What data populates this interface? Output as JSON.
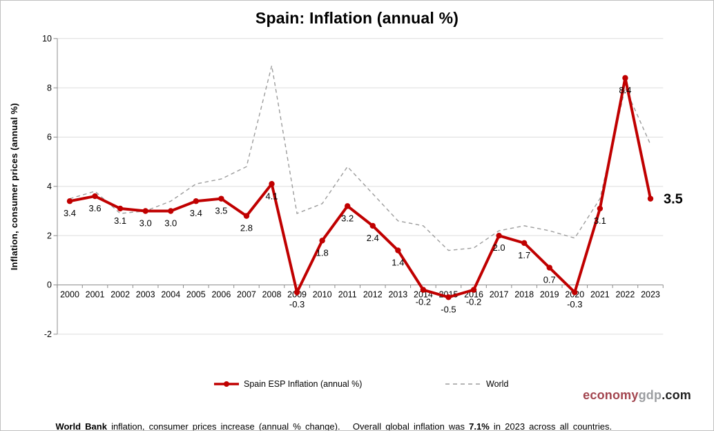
{
  "title": "Spain: Inflation (annual %)",
  "y_axis_title": "Inflation, consumer prices (annual %)",
  "legend": {
    "spain": "Spain ESP Inflation (annual %)",
    "world": "World"
  },
  "footer": {
    "bold1": "World Bank",
    "text1": " inflation, consumer prices increase (annual % change).   Overall global inflation was ",
    "bold2": "7.1%",
    "text2": " in 2023 across all countries."
  },
  "brand": {
    "part1": "economy",
    "part2": "gdp",
    "part3": ".com"
  },
  "colors": {
    "spain_line": "#c00000",
    "world_line": "#9c9c9c",
    "grid": "#dcdcdc",
    "axis": "#8c8c8c",
    "label": "#000000",
    "brand_red": "#a2444e",
    "brand_grey": "#9c9ea1",
    "brand_black": "#1f1f1f"
  },
  "chart_data": {
    "type": "line",
    "categories": [
      "2000",
      "2001",
      "2002",
      "2003",
      "2004",
      "2005",
      "2006",
      "2007",
      "2008",
      "2009",
      "2010",
      "2011",
      "2012",
      "2013",
      "2014",
      "2015",
      "2016",
      "2017",
      "2018",
      "2019",
      "2020",
      "2021",
      "2022",
      "2023"
    ],
    "series": [
      {
        "name": "Spain ESP Inflation (annual %)",
        "color": "#c00000",
        "style": "solid",
        "markers": true,
        "data_labels": true,
        "values": [
          3.4,
          3.6,
          3.1,
          3.0,
          3.0,
          3.4,
          3.5,
          2.8,
          4.1,
          -0.3,
          1.8,
          3.2,
          2.4,
          1.4,
          -0.2,
          -0.5,
          -0.2,
          2.0,
          1.7,
          0.7,
          -0.3,
          3.1,
          8.4,
          3.5
        ]
      },
      {
        "name": "World",
        "color": "#9c9c9c",
        "style": "dashed",
        "markers": false,
        "data_labels": false,
        "values": [
          3.5,
          3.8,
          2.9,
          3.0,
          3.4,
          4.1,
          4.3,
          4.8,
          8.9,
          2.9,
          3.3,
          4.8,
          3.7,
          2.6,
          2.4,
          1.4,
          1.5,
          2.2,
          2.4,
          2.2,
          1.9,
          3.5,
          8.0,
          5.7
        ]
      }
    ],
    "title": "Spain: Inflation (annual %)",
    "xlabel": "",
    "ylabel": "Inflation, consumer prices (annual %)",
    "ylim": [
      -2,
      10
    ],
    "yticks": [
      10,
      8,
      6,
      4,
      2,
      0,
      -2
    ],
    "grid": true,
    "legend_position": "bottom",
    "last_point_label": "3.5"
  }
}
